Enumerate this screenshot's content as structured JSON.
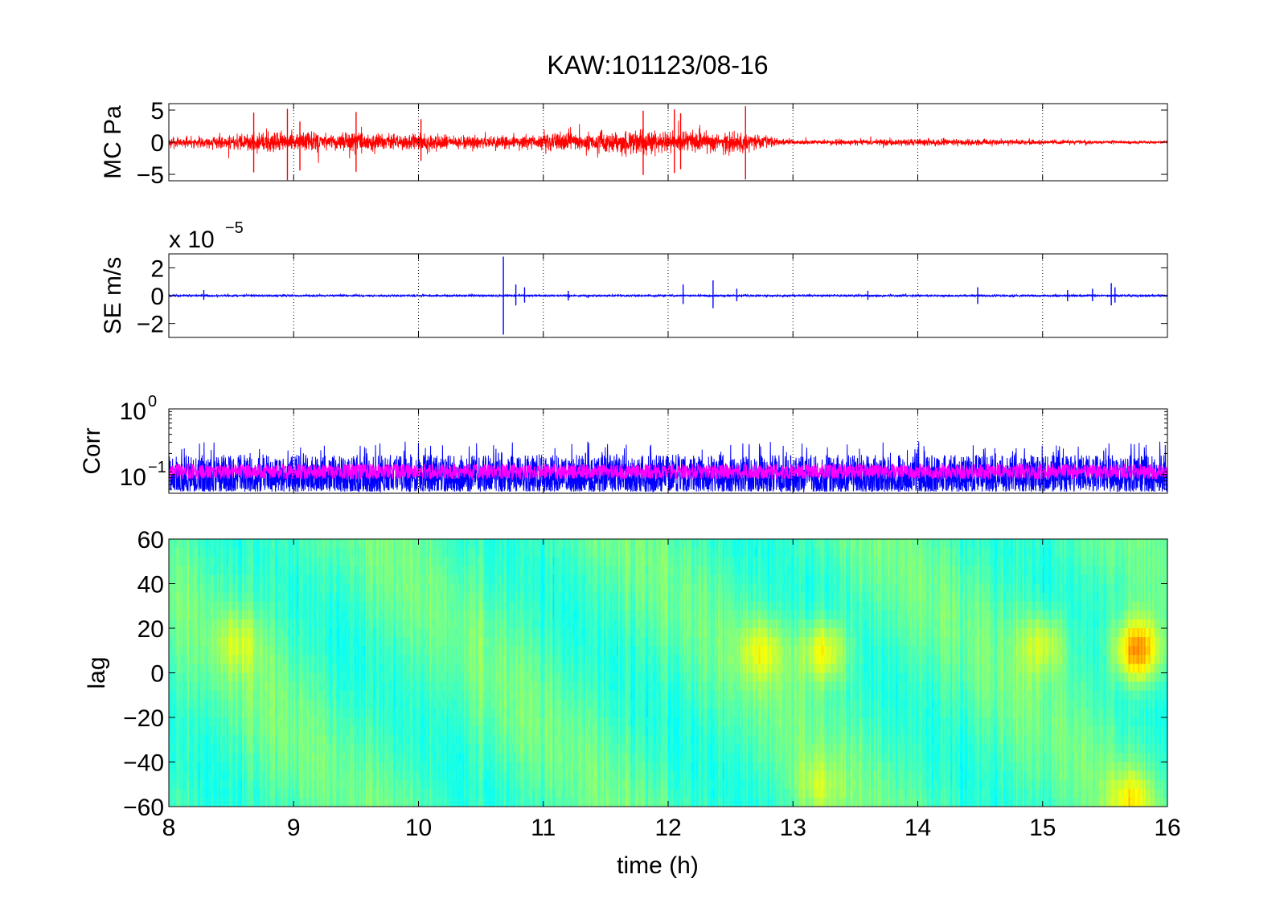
{
  "figure": {
    "title": "KAW:101123/08-16",
    "xlabel": "time (h)"
  },
  "chart_data": [
    {
      "id": "mc",
      "type": "line",
      "ylabel": "MC Pa",
      "xlim": [
        8,
        16
      ],
      "ylim": [
        -6,
        6
      ],
      "xticks": [
        8,
        9,
        10,
        11,
        12,
        13,
        14,
        15,
        16
      ],
      "yticks": [
        -5,
        0,
        5
      ],
      "ytick_labels": [
        "−5",
        "0",
        "5"
      ],
      "grid_x": true,
      "series": [
        {
          "color": "#ff0000",
          "envelope": {
            "t": [
              8.0,
              8.3,
              8.6,
              8.7,
              8.9,
              9.0,
              9.3,
              9.5,
              9.8,
              10.0,
              10.3,
              10.6,
              11.0,
              11.2,
              11.5,
              11.8,
              12.0,
              12.3,
              12.6,
              12.8,
              13.0,
              13.5,
              13.8,
              14.0,
              14.5,
              15.0,
              15.5,
              16.0
            ],
            "amp": [
              1.3,
              1.5,
              2.3,
              2.6,
              2.4,
              2.8,
              2.0,
              2.6,
              1.8,
              2.2,
              1.6,
              1.9,
              2.1,
              2.5,
              2.6,
              2.9,
              2.5,
              2.7,
              2.6,
              1.6,
              0.6,
              0.7,
              0.9,
              0.9,
              0.8,
              0.6,
              0.4,
              0.3
            ]
          },
          "spikes": [
            [
              8.68,
              4.6,
              -4.7
            ],
            [
              8.95,
              5.2,
              -5.9
            ],
            [
              9.05,
              3.2,
              -4.4
            ],
            [
              9.5,
              4.7,
              -4.6
            ],
            [
              10.02,
              3.6,
              -2.9
            ],
            [
              11.8,
              4.9,
              -5.1
            ],
            [
              12.05,
              5.1,
              -4.8
            ],
            [
              12.1,
              4.5,
              -4.2
            ],
            [
              12.62,
              5.6,
              -5.8
            ]
          ]
        }
      ]
    },
    {
      "id": "se",
      "type": "line",
      "ylabel": "SE m/s",
      "exponent_label": "x 10",
      "exponent": "−5",
      "xlim": [
        8,
        16
      ],
      "ylim": [
        -3,
        3
      ],
      "xticks": [
        8,
        9,
        10,
        11,
        12,
        13,
        14,
        15,
        16
      ],
      "yticks": [
        -2,
        0,
        2
      ],
      "ytick_labels": [
        "−2",
        "0",
        "2"
      ],
      "grid_x": true,
      "series": [
        {
          "color": "#0000ff",
          "baseline_amp": 0.12,
          "spikes": [
            [
              8.28,
              0.4,
              -0.3
            ],
            [
              10.68,
              2.8,
              -2.8
            ],
            [
              10.78,
              0.8,
              -0.7
            ],
            [
              10.85,
              0.6,
              -0.5
            ],
            [
              11.2,
              0.35,
              -0.35
            ],
            [
              12.12,
              0.8,
              -0.6
            ],
            [
              12.36,
              1.1,
              -0.9
            ],
            [
              12.55,
              0.5,
              -0.4
            ],
            [
              13.6,
              0.35,
              -0.3
            ],
            [
              14.48,
              0.6,
              -0.6
            ],
            [
              15.2,
              0.4,
              -0.4
            ],
            [
              15.4,
              0.5,
              -0.4
            ],
            [
              15.55,
              0.9,
              -0.7
            ],
            [
              15.58,
              0.6,
              -0.5
            ]
          ]
        }
      ]
    },
    {
      "id": "corr",
      "type": "line",
      "ylabel": "Corr",
      "scale": "log",
      "xlim": [
        8,
        16
      ],
      "ylim": [
        0.052,
        1.0
      ],
      "xticks": [
        8,
        9,
        10,
        11,
        12,
        13,
        14,
        15,
        16
      ],
      "yticks": [
        0.1,
        1.0
      ],
      "ytick_labels": [
        {
          "base": "10",
          "exp": "−1"
        },
        {
          "base": "10",
          "exp": "0"
        }
      ],
      "grid_x": true,
      "series": [
        {
          "color": "#0000ff",
          "low": 0.055,
          "high": 0.2,
          "peak": 0.32
        },
        {
          "color": "#ff00ff",
          "low": 0.085,
          "high": 0.145
        }
      ]
    },
    {
      "id": "lag",
      "type": "heatmap",
      "ylabel": "lag",
      "xlim": [
        8,
        16
      ],
      "ylim": [
        -60,
        60
      ],
      "xticks": [
        8,
        9,
        10,
        11,
        12,
        13,
        14,
        15,
        16
      ],
      "xtick_labels": [
        "8",
        "9",
        "10",
        "11",
        "12",
        "13",
        "14",
        "15",
        "16"
      ],
      "yticks": [
        -60,
        -40,
        -20,
        0,
        20,
        40,
        60
      ],
      "ytick_labels": [
        "−60",
        "−40",
        "−20",
        "0",
        "20",
        "40",
        "60"
      ],
      "colormap": "jet",
      "hotspots": [
        [
          15.75,
          12,
          0.32
        ],
        [
          13.25,
          12,
          0.2
        ],
        [
          12.75,
          12,
          0.14
        ],
        [
          15.0,
          15,
          0.14
        ],
        [
          8.55,
          15,
          0.1
        ],
        [
          15.7,
          -55,
          0.16
        ],
        [
          13.2,
          -50,
          0.1
        ]
      ]
    }
  ]
}
